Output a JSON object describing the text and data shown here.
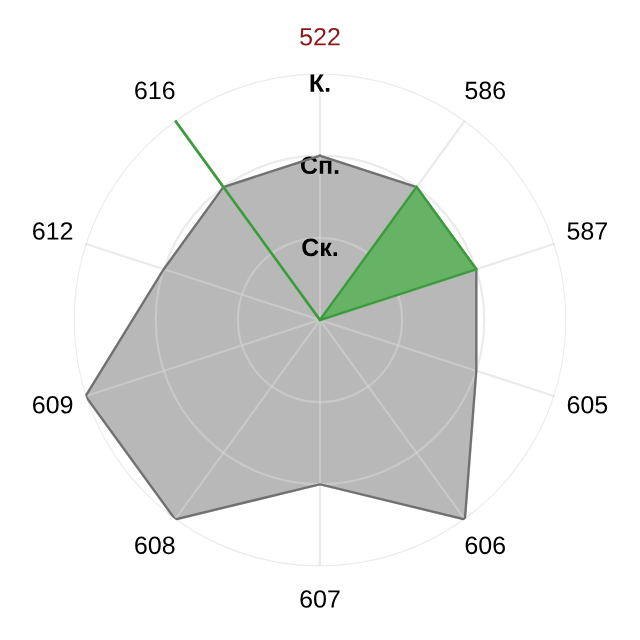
{
  "chart_data": {
    "type": "radar",
    "categories": [
      "522",
      "586",
      "587",
      "605",
      "606",
      "607",
      "608",
      "609",
      "612",
      "616"
    ],
    "series": [
      {
        "color": "#b8b8b8",
        "values": [
          2,
          2,
          2,
          2,
          3,
          2,
          3,
          3,
          2,
          2
        ]
      },
      {
        "color": "#66b366",
        "values": [
          0,
          2,
          2,
          0,
          0,
          0,
          0,
          0,
          0,
          3
        ]
      }
    ],
    "ylim": [
      0,
      3
    ],
    "yticks": [
      {
        "value": 1,
        "label": "Ск."
      },
      {
        "value": 2,
        "label": "Сп."
      },
      {
        "value": 3,
        "label": "К."
      }
    ],
    "grid": true
  }
}
